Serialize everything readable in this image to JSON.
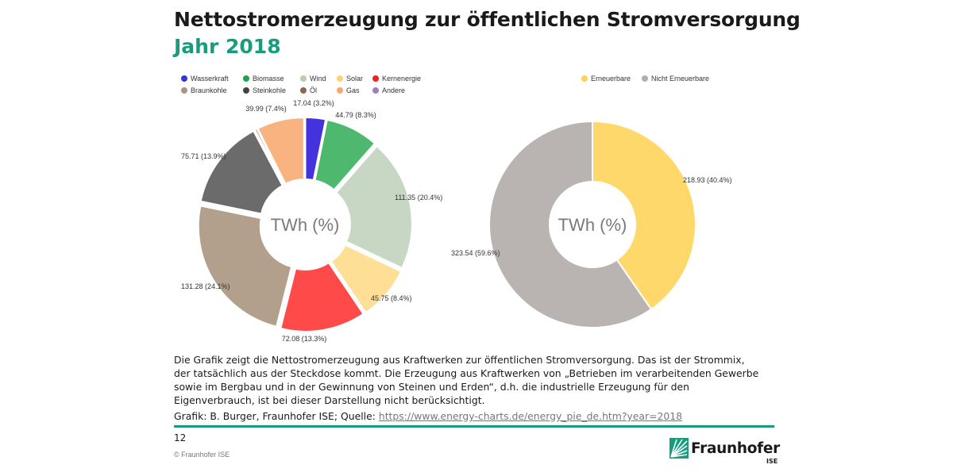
{
  "header": {
    "title": "Nettostromerzeugung zur öffentlichen Stromversorgung",
    "subtitle": "Jahr 2018"
  },
  "colors": {
    "accent": "#179c7d"
  },
  "chart_data": [
    {
      "type": "pie",
      "variant": "donut",
      "center_label": "TWh (%)",
      "legend": {
        "placement": "top",
        "entries": [
          {
            "name": "Wasserkraft",
            "color": "#3a34d2"
          },
          {
            "name": "Biomasse",
            "color": "#1fa34a"
          },
          {
            "name": "Wind",
            "color": "#b7ccb0"
          },
          {
            "name": "Solar",
            "color": "#ffd27a"
          },
          {
            "name": "Kernenergie",
            "color": "#ee2222"
          },
          {
            "name": "Braunkohle",
            "color": "#a89682"
          },
          {
            "name": "Steinkohle",
            "color": "#444444"
          },
          {
            "name": "Öl",
            "color": "#8a6a48"
          },
          {
            "name": "Gas",
            "color": "#f6a96b"
          },
          {
            "name": "Andere",
            "color": "#9e7fbd"
          }
        ]
      },
      "slices": [
        {
          "name": "Wasserkraft",
          "value": 17.04,
          "percent": 3.2,
          "label": "17.04 (3.2%)",
          "color": "#4433dd"
        },
        {
          "name": "Biomasse",
          "value": 44.79,
          "percent": 8.3,
          "label": "44.79 (8.3%)",
          "color": "#4db86e"
        },
        {
          "name": "Wind",
          "value": 111.35,
          "percent": 20.4,
          "label": "111.35 (20.4%)",
          "color": "#c8d7c3"
        },
        {
          "name": "Solar",
          "value": 45.75,
          "percent": 8.4,
          "label": "45.75 (8.4%)",
          "color": "#ffdf95"
        },
        {
          "name": "Kernenergie",
          "value": 72.08,
          "percent": 13.3,
          "label": "72.08 (13.3%)",
          "color": "#ff4a4a"
        },
        {
          "name": "Braunkohle",
          "value": 131.28,
          "percent": 24.1,
          "label": "131.28 (24.1%)",
          "color": "#b2a08c"
        },
        {
          "name": "Steinkohle",
          "value": 75.71,
          "percent": 13.9,
          "label": "75.71 (13.9%)",
          "color": "#6b6b6b"
        },
        {
          "name": "Öl",
          "value": 1.8,
          "percent": 0.3,
          "label": "",
          "color": "#8a6a48"
        },
        {
          "name": "Gas",
          "value": 39.99,
          "percent": 7.4,
          "label": "39.99 (7.4%)",
          "color": "#f8b380"
        }
      ]
    },
    {
      "type": "pie",
      "variant": "donut",
      "center_label": "TWh (%)",
      "legend": {
        "placement": "top",
        "entries": [
          {
            "name": "Erneuerbare",
            "color": "#ffd154"
          },
          {
            "name": "Nicht Erneuerbare",
            "color": "#b3aeab"
          }
        ]
      },
      "slices": [
        {
          "name": "Erneuerbare",
          "value": 218.93,
          "percent": 40.4,
          "label": "218.93 (40.4%)",
          "color": "#ffd86b"
        },
        {
          "name": "Nicht Erneuerbare",
          "value": 323.54,
          "percent": 59.6,
          "label": "323.54 (59.6%)",
          "color": "#b9b4b1"
        }
      ]
    }
  ],
  "description": "Die Grafik zeigt die Nettostromerzeugung aus Kraftwerken zur öffentlichen Stromversorgung. Das ist der Strommix, der tatsächlich aus der Steckdose kommt. Die Erzeugung aus Kraftwerken von „Betrieben im verarbeitenden Gewerbe sowie im Bergbau und in der Gewinnung von Steinen und Erden“, d.h. die industrielle Erzeugung für den Eigenverbrauch, ist bei dieser Darstellung nicht berücksichtigt.",
  "credit": {
    "prefix": "Grafik: B. Burger, Fraunhofer ISE; Quelle: ",
    "link": "https://www.energy-charts.de/energy_pie_de.htm?year=2018"
  },
  "footer": {
    "page_number": "12",
    "copyright": "© Fraunhofer ISE",
    "logo_name": "Fraunhofer",
    "logo_sub": "ISE"
  }
}
